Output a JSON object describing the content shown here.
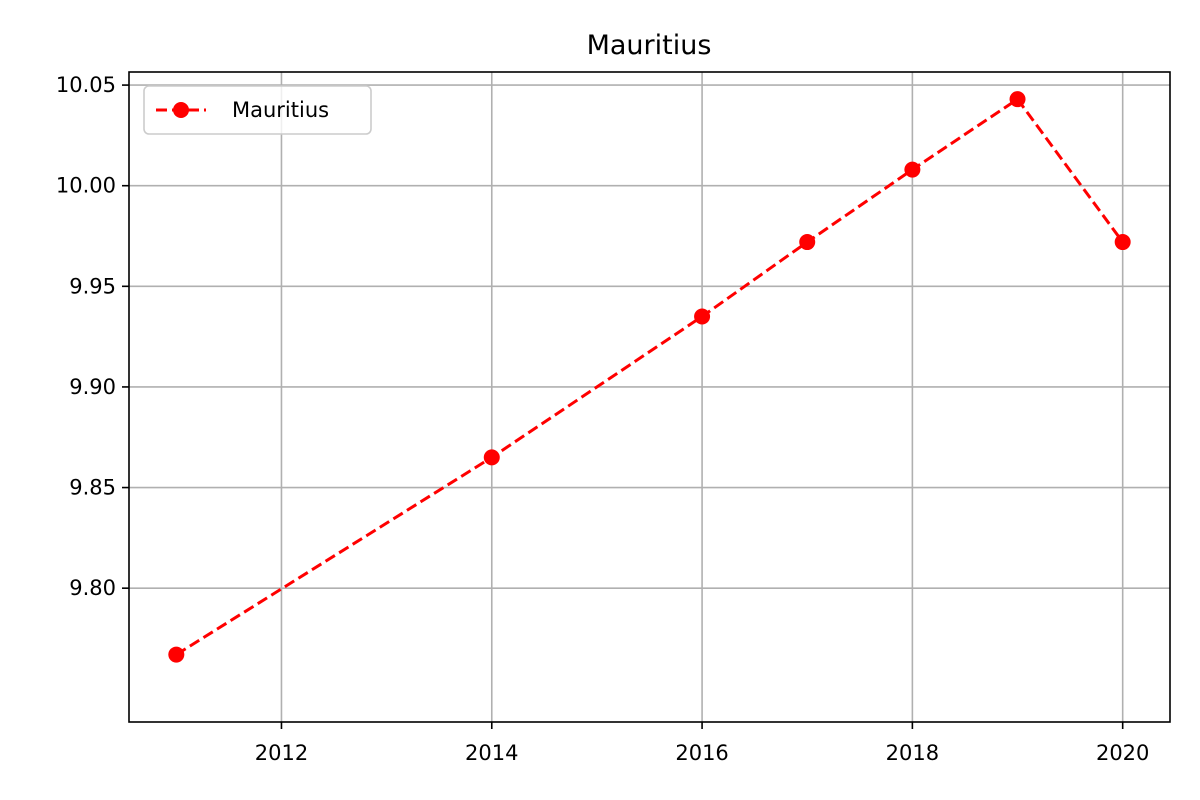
{
  "chart_data": {
    "type": "line",
    "title": "Mauritius",
    "xlabel": "",
    "ylabel": "",
    "x": [
      2011,
      2014,
      2016,
      2017,
      2018,
      2019,
      2020
    ],
    "series": [
      {
        "name": "Mauritius",
        "values": [
          9.767,
          9.865,
          9.935,
          9.972,
          10.008,
          10.043,
          9.972
        ],
        "color": "#ff0000",
        "line_style": "dashed",
        "marker": "circle"
      }
    ],
    "xlim": [
      2010.55,
      2020.45
    ],
    "ylim": [
      9.7335,
      10.0565
    ],
    "xticks": [
      2012,
      2014,
      2016,
      2018,
      2020
    ],
    "xtick_labels": [
      "2012",
      "2014",
      "2016",
      "2018",
      "2020"
    ],
    "yticks": [
      9.8,
      9.85,
      9.9,
      9.95,
      10.0,
      10.05
    ],
    "ytick_labels": [
      "9.80",
      "9.85",
      "9.90",
      "9.95",
      "10.00",
      "10.05"
    ],
    "grid": true,
    "legend_position": "upper-left"
  }
}
